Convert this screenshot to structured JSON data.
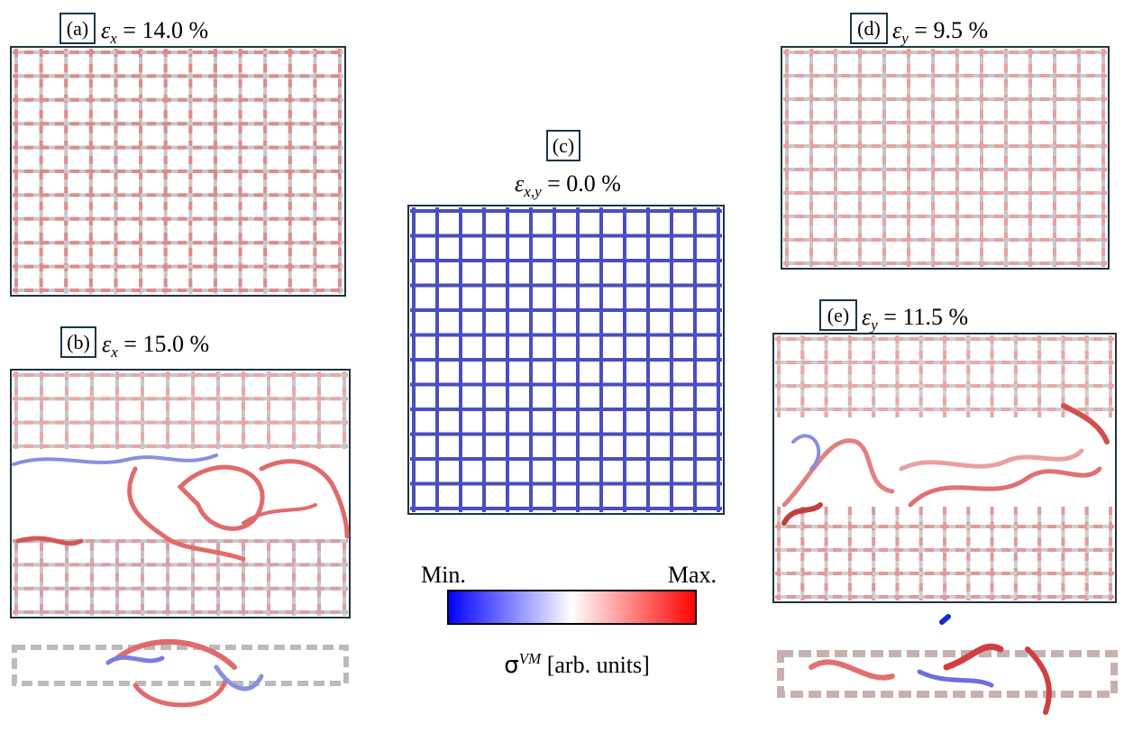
{
  "panels": [
    {
      "tag": "(a)",
      "symbol": "ε",
      "subscript": "x",
      "rest": " = 14.0 %"
    },
    {
      "tag": "(b)",
      "symbol": "ε",
      "subscript": "x",
      "rest": " = 15.0 %"
    },
    {
      "tag": "(c)",
      "symbol": "ε",
      "subscript": "x,y",
      "rest": " = 0.0 %"
    },
    {
      "tag": "(d)",
      "symbol": "ε",
      "subscript": "y",
      "rest": " = 9.5 %"
    },
    {
      "tag": "(e)",
      "symbol": "ε",
      "subscript": "y",
      "rest": " = 11.5 %"
    }
  ],
  "colorbar": {
    "min": "Min.",
    "max": "Max.",
    "symbol": "σ",
    "superscript": "VM",
    "unit": " [arb. units]"
  }
}
